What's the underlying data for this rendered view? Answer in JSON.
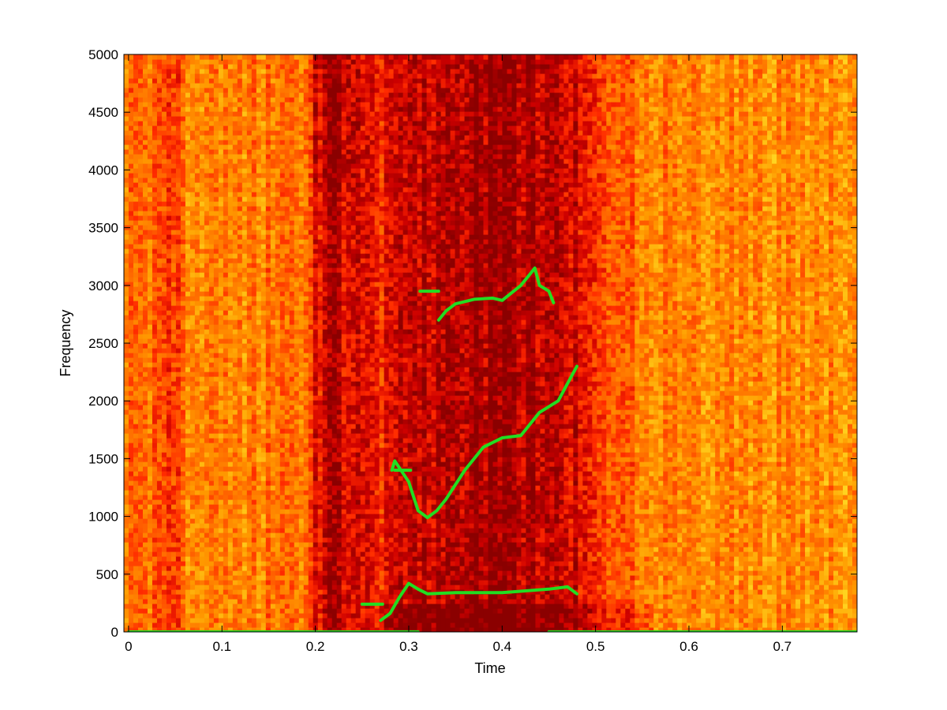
{
  "chart_data": {
    "type": "heatmap",
    "title": "",
    "xlabel": "Time",
    "ylabel": "Frequency",
    "xlim": [
      -0.005,
      0.78
    ],
    "ylim": [
      0,
      5000
    ],
    "xticks": [
      0,
      0.1,
      0.2,
      0.3,
      0.4,
      0.5,
      0.6,
      0.7
    ],
    "xtick_labels": [
      "0",
      "0.1",
      "0.2",
      "0.3",
      "0.4",
      "0.5",
      "0.6",
      "0.7"
    ],
    "yticks": [
      0,
      500,
      1000,
      1500,
      2000,
      2500,
      3000,
      3500,
      4000,
      4500,
      5000
    ],
    "ytick_labels": [
      "0",
      "500",
      "1000",
      "1500",
      "2000",
      "2500",
      "3000",
      "3500",
      "4000",
      "4500",
      "5000"
    ],
    "grid": false,
    "colormap": [
      "#8b0000",
      "#cc0000",
      "#ff2a00",
      "#ff6a00",
      "#ff9a00",
      "#ffcc1a",
      "#ffff40"
    ],
    "overlay_color": "#22dd22",
    "intensity_profile": {
      "x": [
        0,
        0.03,
        0.045,
        0.06,
        0.1,
        0.15,
        0.19,
        0.2,
        0.22,
        0.24,
        0.27,
        0.3,
        0.35,
        0.4,
        0.45,
        0.48,
        0.5,
        0.52,
        0.55,
        0.6,
        0.7,
        0.78
      ],
      "level": [
        0.55,
        0.5,
        0.3,
        0.55,
        0.6,
        0.55,
        0.6,
        0.25,
        0.12,
        0.22,
        0.3,
        0.12,
        0.1,
        0.05,
        0.12,
        0.2,
        0.25,
        0.45,
        0.55,
        0.6,
        0.62,
        0.65
      ]
    },
    "series": [
      {
        "points": [
          [
            0.27,
            100
          ],
          [
            0.28,
            160
          ],
          [
            0.29,
            300
          ],
          [
            0.3,
            420
          ],
          [
            0.31,
            370
          ],
          [
            0.32,
            330
          ],
          [
            0.35,
            340
          ],
          [
            0.4,
            340
          ],
          [
            0.45,
            370
          ],
          [
            0.47,
            390
          ],
          [
            0.48,
            330
          ]
        ]
      },
      {
        "points": [
          [
            0.282,
            1400
          ],
          [
            0.285,
            1480
          ],
          [
            0.3,
            1300
          ],
          [
            0.31,
            1050
          ],
          [
            0.32,
            990
          ],
          [
            0.33,
            1050
          ],
          [
            0.34,
            1150
          ],
          [
            0.36,
            1400
          ],
          [
            0.38,
            1600
          ],
          [
            0.4,
            1680
          ],
          [
            0.42,
            1700
          ],
          [
            0.44,
            1900
          ],
          [
            0.46,
            2000
          ],
          [
            0.47,
            2150
          ],
          [
            0.48,
            2300
          ]
        ]
      },
      {
        "points": [
          [
            0.332,
            2700
          ],
          [
            0.34,
            2780
          ],
          [
            0.35,
            2840
          ],
          [
            0.37,
            2880
          ],
          [
            0.39,
            2890
          ],
          [
            0.4,
            2870
          ],
          [
            0.42,
            3000
          ],
          [
            0.43,
            3100
          ],
          [
            0.435,
            3150
          ],
          [
            0.44,
            3000
          ],
          [
            0.45,
            2950
          ],
          [
            0.455,
            2850
          ]
        ]
      },
      {
        "points": [
          [
            0.25,
            240
          ],
          [
            0.272,
            240
          ]
        ]
      },
      {
        "points": [
          [
            0.285,
            1400
          ],
          [
            0.302,
            1400
          ]
        ]
      },
      {
        "points": [
          [
            0.312,
            2950
          ],
          [
            0.332,
            2950
          ]
        ]
      },
      {
        "points": [
          [
            0,
            0
          ],
          [
            0.31,
            0
          ]
        ]
      },
      {
        "points": [
          [
            0.45,
            0
          ],
          [
            0.78,
            0
          ]
        ]
      }
    ]
  }
}
